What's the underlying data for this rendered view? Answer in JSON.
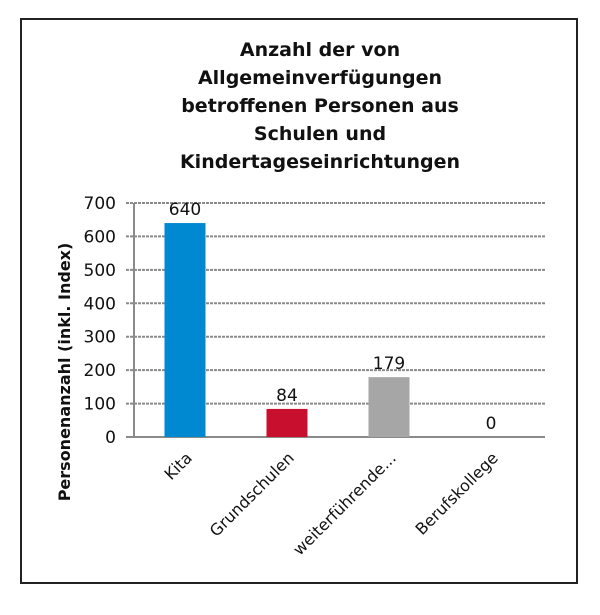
{
  "chart_data": {
    "type": "bar",
    "title_lines": [
      "Anzahl der von",
      "Allgemeinverfügungen",
      "betroffenen Personen aus",
      "Schulen und",
      "Kindertageseinrichtungen"
    ],
    "xlabel": "",
    "ylabel": "Personenanzahl (inkl. Index)",
    "categories": [
      "Kita",
      "Grundschulen",
      "weiterführende...",
      "Berufskollege"
    ],
    "values": [
      640,
      84,
      179,
      0
    ],
    "colors": [
      "#0088D1",
      "#C8102E",
      "#A6A6A6",
      "#A6A6A6"
    ],
    "ylim": [
      0,
      700
    ],
    "yticks": [
      0,
      100,
      200,
      300,
      400,
      500,
      600,
      700
    ],
    "grid": true,
    "legend": "none",
    "data_labels": true
  }
}
